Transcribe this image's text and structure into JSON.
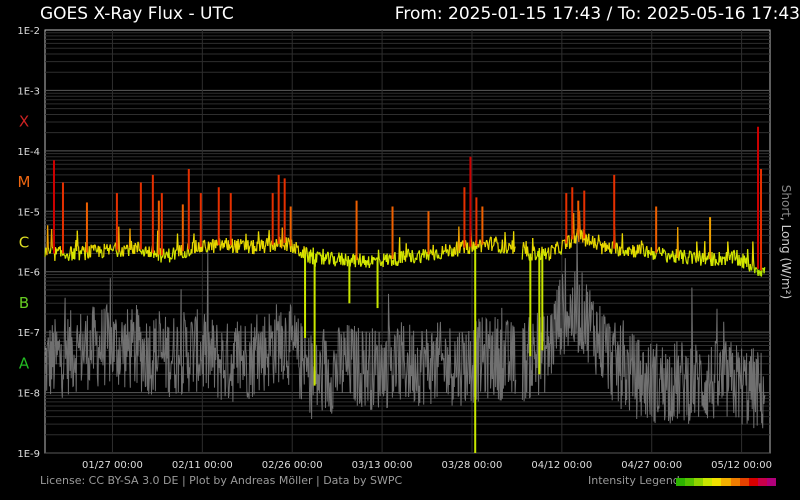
{
  "header": {
    "title": "GOES X-Ray Flux - UTC",
    "range": "From: 2025-01-15 17:43  /  To: 2025-05-16 17:43"
  },
  "footer": {
    "credits": "License: CC BY-SA 3.0 DE | Plot by Andreas Möller | Data by SWPC",
    "legend_label": "Intensity Legend"
  },
  "side_label": {
    "short": "Short",
    "sep": ", ",
    "long": "Long (W/m²)"
  },
  "legend_colors": [
    "#2db300",
    "#55c200",
    "#8fd400",
    "#c8e600",
    "#f0e000",
    "#f3b000",
    "#ef7d00",
    "#e54200",
    "#d80000",
    "#c8004a",
    "#b0007a"
  ],
  "chart_data": {
    "type": "line",
    "title": "GOES X-Ray Flux - UTC",
    "x_range": [
      "2025-01-15 17:43",
      "2025-05-16 17:43"
    ],
    "y_scale": "log",
    "ylim": [
      1e-09,
      0.01
    ],
    "y_ticks": [
      "1E-9",
      "1E-8",
      "1E-7",
      "1E-6",
      "1E-5",
      "1E-4",
      "1E-3",
      "1E-2"
    ],
    "x_ticks": [
      "01/27 00:00",
      "02/11 00:00",
      "02/26 00:00",
      "03/13 00:00",
      "03/28 00:00",
      "04/12 00:00",
      "04/27 00:00",
      "05/12 00:00"
    ],
    "x_tick_days": [
      11.26,
      26.26,
      41.26,
      56.26,
      71.26,
      86.26,
      101.26,
      116.26
    ],
    "flare_classes": [
      {
        "label": "X",
        "color": "#cc2222"
      },
      {
        "label": "M",
        "color": "#ee6611"
      },
      {
        "label": "C",
        "color": "#dddd22"
      },
      {
        "label": "B",
        "color": "#66cc22"
      },
      {
        "label": "A",
        "color": "#22bb22"
      }
    ],
    "grid": true,
    "series": [
      {
        "name": "Long",
        "color_by_intensity": true,
        "baseline": [
          [
            0,
            2e-06
          ],
          [
            5,
            2e-06
          ],
          [
            10,
            2.2e-06
          ],
          [
            15,
            2.5e-06
          ],
          [
            20,
            1.8e-06
          ],
          [
            25,
            2.5e-06
          ],
          [
            30,
            2.8e-06
          ],
          [
            35,
            2.5e-06
          ],
          [
            40,
            3e-06
          ],
          [
            45,
            1.6e-06
          ],
          [
            50,
            1.6e-06
          ],
          [
            55,
            1.5e-06
          ],
          [
            60,
            1.7e-06
          ],
          [
            65,
            2e-06
          ],
          [
            70,
            2.5e-06
          ],
          [
            75,
            3e-06
          ],
          [
            78.6,
            2e-06
          ],
          [
            84,
            2e-06
          ],
          [
            86,
            2.5e-06
          ],
          [
            89,
            4e-06
          ],
          [
            93,
            2.5e-06
          ],
          [
            100,
            2.2e-06
          ],
          [
            105,
            1.8e-06
          ],
          [
            110,
            1.6e-06
          ],
          [
            115,
            1.7e-06
          ],
          [
            120,
            1e-06
          ]
        ],
        "peaks": [
          [
            1.5,
            7e-05
          ],
          [
            3,
            3e-05
          ],
          [
            7,
            1.4e-05
          ],
          [
            12,
            2e-05
          ],
          [
            16,
            3e-05
          ],
          [
            18,
            4e-05
          ],
          [
            19,
            1.5e-05
          ],
          [
            19.5,
            2e-05
          ],
          [
            23,
            1.3e-05
          ],
          [
            24,
            5e-05
          ],
          [
            26,
            2e-05
          ],
          [
            29,
            2.5e-05
          ],
          [
            31,
            2e-05
          ],
          [
            38,
            2e-05
          ],
          [
            39,
            4e-05
          ],
          [
            40,
            3.5e-05
          ],
          [
            41,
            1.2e-05
          ],
          [
            52,
            1.5e-05
          ],
          [
            58,
            1.2e-05
          ],
          [
            64,
            1e-05
          ],
          [
            70,
            2.5e-05
          ],
          [
            71,
            8e-05
          ],
          [
            72,
            1.7e-05
          ],
          [
            73,
            1.2e-05
          ],
          [
            87,
            2e-05
          ],
          [
            88,
            2.5e-05
          ],
          [
            89,
            1.5e-05
          ],
          [
            90,
            2.2e-05
          ],
          [
            95,
            4e-05
          ],
          [
            102,
            1.2e-05
          ],
          [
            111,
            8e-06
          ],
          [
            119,
            0.00025
          ],
          [
            119.5,
            5e-05
          ]
        ],
        "dips": [
          [
            43.4,
            8e-08
          ],
          [
            45,
            1.3e-08
          ],
          [
            50.8,
            3e-07
          ],
          [
            55.5,
            2.5e-07
          ],
          [
            71.8,
            1e-09
          ],
          [
            81,
            4e-08
          ],
          [
            82.5,
            2e-08
          ],
          [
            83,
            5e-08
          ]
        ],
        "gaps": [
          [
            78.6,
            79.6
          ]
        ]
      },
      {
        "name": "Short",
        "color": "#707070",
        "baseline": [
          [
            0,
            3e-08
          ],
          [
            5,
            5e-08
          ],
          [
            10,
            6e-08
          ],
          [
            15,
            5e-08
          ],
          [
            20,
            4e-08
          ],
          [
            25,
            5e-08
          ],
          [
            30,
            3e-08
          ],
          [
            35,
            4e-08
          ],
          [
            40,
            8e-08
          ],
          [
            45,
            1.5e-08
          ],
          [
            50,
            3e-08
          ],
          [
            55,
            2.5e-08
          ],
          [
            60,
            3e-08
          ],
          [
            65,
            3e-08
          ],
          [
            70,
            3e-08
          ],
          [
            75,
            4e-08
          ],
          [
            78.6,
            3e-08
          ],
          [
            84,
            5e-08
          ],
          [
            86,
            2e-07
          ],
          [
            90,
            2e-07
          ],
          [
            95,
            3e-08
          ],
          [
            100,
            1.5e-08
          ],
          [
            105,
            1.5e-08
          ],
          [
            110,
            1.5e-08
          ],
          [
            115,
            1.5e-08
          ],
          [
            120,
            1e-08
          ]
        ],
        "gaps": [
          [
            78.6,
            79.6
          ]
        ]
      }
    ]
  }
}
